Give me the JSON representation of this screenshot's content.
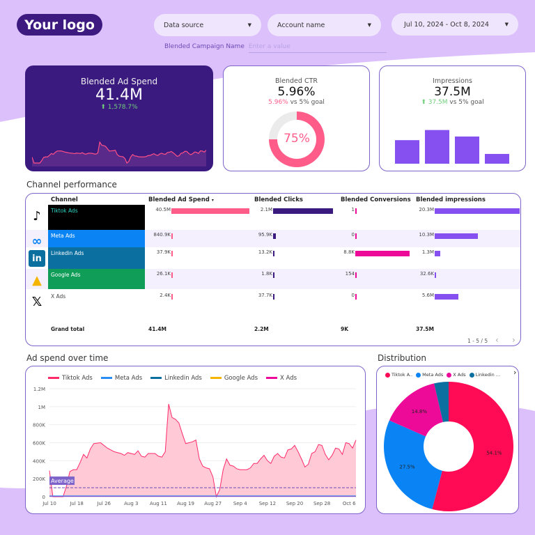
{
  "header": {
    "logo": "Your logo",
    "data_source": "Data source",
    "account_name": "Account name",
    "date_range": "Jul 10, 2024 - Oct 8, 2024",
    "campaign_label": "Blended Campaign Name",
    "campaign_placeholder": "Enter a value"
  },
  "colors": {
    "brand": "#3b1a80",
    "background_band": "#dcc0fb",
    "tiktok": "#ff0a54",
    "meta": "#0a84f5",
    "linkedin": "#0b6fa0",
    "google": "#f4b400",
    "x": "#ee0a99",
    "impressions": "#8650f0"
  },
  "kpis": {
    "spend": {
      "title": "Blended Ad Spend",
      "value": "41.4M",
      "change": "1,578.7%"
    },
    "ctr": {
      "title": "Blended CTR",
      "value": "5.96%",
      "compare_value": "5.96%",
      "compare_text": "vs 5% goal",
      "gauge_label": "75%",
      "gauge_fraction": 0.75
    },
    "impressions": {
      "title": "Impressions",
      "value": "37.5M",
      "compare_value": "37.5M",
      "compare_text": "vs 5% goal",
      "bars": [
        0.65,
        0.93,
        0.75,
        0.27
      ]
    }
  },
  "table": {
    "title": "Channel performance",
    "headers": [
      "Channel",
      "Blended Ad Spend",
      "Blended Clicks",
      "Blended Conversions",
      "Blended impressions"
    ],
    "sort_icon": "▾",
    "rows": [
      {
        "channel": "Tiktok Ads",
        "icon": "tiktok-icon",
        "bg": "#000000",
        "spend": "40.5M",
        "spend_v": 40.5,
        "clicks": "2.1M",
        "clicks_v": 2.1,
        "conv": "1",
        "conv_v": 1,
        "impr": "20.3M",
        "impr_v": 20.3
      },
      {
        "channel": "Meta Ads",
        "icon": "meta-icon",
        "bg": "#0a84f5",
        "spend": "840.9K",
        "spend_v": 0.84,
        "clicks": "95.9K",
        "clicks_v": 0.096,
        "conv": "0",
        "conv_v": 0,
        "impr": "10.3M",
        "impr_v": 10.3
      },
      {
        "channel": "Linkedin Ads",
        "icon": "linkedin-icon",
        "bg": "#0b6fa0",
        "spend": "37.9K",
        "spend_v": 0.038,
        "clicks": "13.2K",
        "clicks_v": 0.013,
        "conv": "8.8K",
        "conv_v": 8800,
        "impr": "1.3M",
        "impr_v": 1.3
      },
      {
        "channel": "Google Ads",
        "icon": "google-ads-icon",
        "bg": "#0f9d58",
        "spend": "26.1K",
        "spend_v": 0.026,
        "clicks": "1.8K",
        "clicks_v": 0.002,
        "conv": "154",
        "conv_v": 154,
        "impr": "32.6K",
        "impr_v": 0.033
      },
      {
        "channel": "X Ads",
        "icon": "x-icon",
        "bg": "",
        "spend": "2.4K",
        "spend_v": 0.002,
        "clicks": "37.7K",
        "clicks_v": 0.038,
        "conv": "0",
        "conv_v": 0,
        "impr": "5.6M",
        "impr_v": 5.6
      }
    ],
    "totals": {
      "label": "Grand total",
      "spend": "41.4M",
      "clicks": "2.2M",
      "conv": "9K",
      "impr": "37.5M"
    },
    "pagination": "1 - 5 / 5"
  },
  "chart_data": [
    {
      "type": "area",
      "title": "Ad spend over time",
      "series": [
        {
          "name": "Tiktok Ads",
          "color": "#ff2a6a",
          "values": [
            290,
            0,
            0,
            0,
            0,
            120,
            280,
            300,
            300,
            380,
            470,
            430,
            530,
            590,
            595,
            600,
            570,
            540,
            520,
            500,
            490,
            480,
            460,
            490,
            480,
            470,
            510,
            450,
            440,
            480,
            480,
            480,
            450,
            440,
            500,
            1030,
            880,
            860,
            820,
            700,
            590,
            600,
            610,
            630,
            420,
            340,
            320,
            310,
            220,
            0,
            80,
            300,
            420,
            350,
            340,
            310,
            300,
            300,
            300,
            320,
            370,
            370,
            420,
            460,
            400,
            370,
            450,
            480,
            440,
            430,
            520,
            530,
            570,
            500,
            420,
            330,
            360,
            480,
            500,
            580,
            570,
            470,
            410,
            460,
            540,
            530,
            470,
            600,
            590,
            540,
            630
          ]
        },
        {
          "name": "Meta Ads",
          "color": "#2a8cf5",
          "values": "≈10K"
        },
        {
          "name": "Linkedin Ads",
          "color": "#0b6fa0",
          "values": "≈0"
        },
        {
          "name": "Google Ads",
          "color": "#f4b400",
          "values": "≈0"
        },
        {
          "name": "X Ads",
          "color": "#ee0a99",
          "values": "≈0"
        }
      ],
      "x_start": "Jul 10",
      "x_ticks": [
        "Jul 10",
        "Jul 18",
        "Jul 26",
        "Aug 3",
        "Aug 11",
        "Aug 19",
        "Aug 27",
        "Sep 4",
        "Sep 12",
        "Sep 20",
        "Sep 28",
        "Oct 6"
      ],
      "y_ticks": [
        "0",
        "200K",
        "400K",
        "600K",
        "800K",
        "1M",
        "1.2M"
      ],
      "ylim": [
        0,
        1200
      ],
      "y_units": "K",
      "average": 100,
      "average_label": "Average"
    },
    {
      "type": "pie",
      "title": "Distribution",
      "labels": [
        "Tiktok A..",
        "Meta Ads",
        "X Ads",
        "Linkedin ..."
      ],
      "values": [
        54.1,
        27.5,
        14.8,
        3.6
      ],
      "colors": [
        "#ff0a54",
        "#0a84f5",
        "#ee0a99",
        "#0b6fa0"
      ],
      "data_labels": [
        "54.1%",
        "27.5%",
        "14.8%",
        ""
      ]
    }
  ]
}
